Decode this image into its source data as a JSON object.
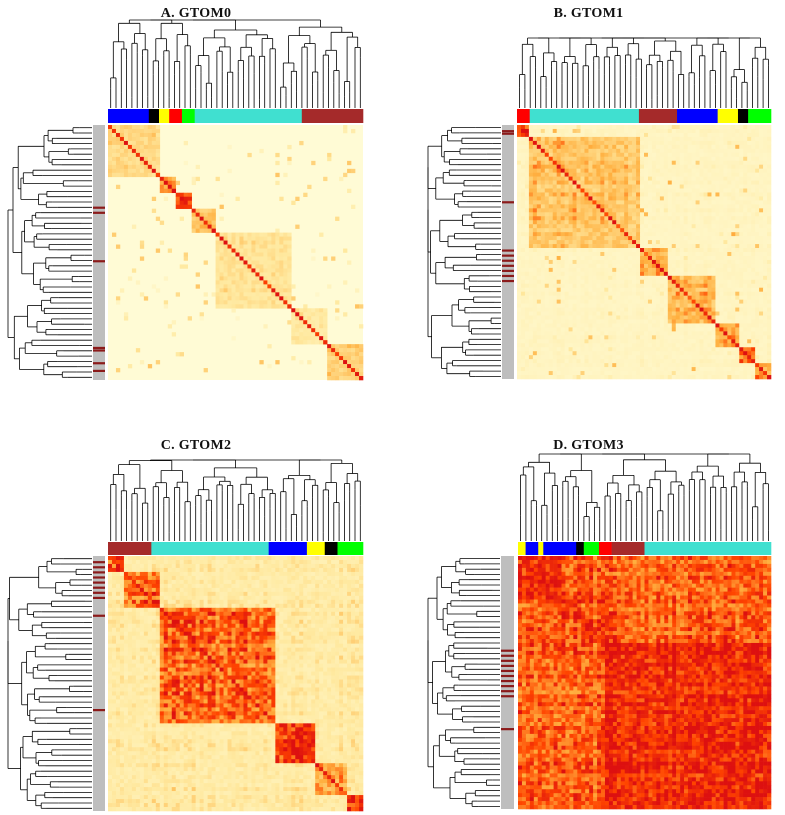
{
  "figure": {
    "panels": [
      {
        "title": "A. GTOM0"
      },
      {
        "title": "B. GTOM1"
      },
      {
        "title": "C. GTOM2"
      },
      {
        "title": "D. GTOM3"
      }
    ]
  },
  "chart_data": [
    {
      "type": "heatmap",
      "title": "A. GTOM0",
      "xlabel": "",
      "ylabel": "",
      "colormap": [
        "#fffbd5",
        "#ffe9a0",
        "#ffb040",
        "#ff4400",
        "#dd1010"
      ],
      "background_level": 0.02,
      "noise": 0.35,
      "color_bar_top": [
        {
          "color": "#0000ff",
          "fraction": 0.16
        },
        {
          "color": "#000000",
          "fraction": 0.04
        },
        {
          "color": "#ffff00",
          "fraction": 0.04
        },
        {
          "color": "#ff0000",
          "fraction": 0.05
        },
        {
          "color": "#00ff00",
          "fraction": 0.05
        },
        {
          "color": "#40e0d0",
          "fraction": 0.42
        },
        {
          "color": "#a52a2a",
          "fraction": 0.24
        }
      ],
      "color_bar_left_base": "#bebebe",
      "color_bar_left_marks": [
        0.32,
        0.34,
        0.53,
        0.87,
        0.88,
        0.93,
        0.96
      ],
      "modules": [
        {
          "start": 0.0,
          "end": 0.2,
          "level": 0.35
        },
        {
          "start": 0.2,
          "end": 0.26,
          "level": 0.55
        },
        {
          "start": 0.26,
          "end": 0.33,
          "level": 0.85
        },
        {
          "start": 0.33,
          "end": 0.42,
          "level": 0.45
        },
        {
          "start": 0.42,
          "end": 0.72,
          "level": 0.3
        },
        {
          "start": 0.72,
          "end": 0.86,
          "level": 0.25
        },
        {
          "start": 0.86,
          "end": 1.0,
          "level": 0.4
        }
      ]
    },
    {
      "type": "heatmap",
      "title": "B. GTOM1",
      "xlabel": "",
      "ylabel": "",
      "colormap": [
        "#fffbd5",
        "#ffe9a0",
        "#ffb040",
        "#ff4400",
        "#dd1010"
      ],
      "background_level": 0.1,
      "noise": 0.45,
      "color_bar_top": [
        {
          "color": "#ff0000",
          "fraction": 0.05
        },
        {
          "color": "#40e0d0",
          "fraction": 0.43
        },
        {
          "color": "#a52a2a",
          "fraction": 0.15
        },
        {
          "color": "#0000ff",
          "fraction": 0.16
        },
        {
          "color": "#ffff00",
          "fraction": 0.08
        },
        {
          "color": "#000000",
          "fraction": 0.04
        },
        {
          "color": "#00ff00",
          "fraction": 0.09
        }
      ],
      "color_bar_left_base": "#bebebe",
      "color_bar_left_marks": [
        0.02,
        0.03,
        0.3,
        0.49,
        0.51,
        0.53,
        0.55,
        0.57,
        0.59,
        0.61
      ],
      "modules": [
        {
          "start": 0.0,
          "end": 0.05,
          "level": 0.9
        },
        {
          "start": 0.05,
          "end": 0.48,
          "level": 0.45
        },
        {
          "start": 0.48,
          "end": 0.6,
          "level": 0.55
        },
        {
          "start": 0.6,
          "end": 0.78,
          "level": 0.5
        },
        {
          "start": 0.78,
          "end": 0.88,
          "level": 0.55
        },
        {
          "start": 0.88,
          "end": 0.93,
          "level": 0.7
        },
        {
          "start": 0.93,
          "end": 1.0,
          "level": 0.6
        }
      ]
    },
    {
      "type": "heatmap",
      "title": "C. GTOM2",
      "xlabel": "",
      "ylabel": "",
      "colormap": [
        "#fffbd5",
        "#ffe9a0",
        "#ffb040",
        "#ff4400",
        "#dd1010"
      ],
      "background_level": 0.25,
      "noise": 0.55,
      "color_bar_top": [
        {
          "color": "#a52a2a",
          "fraction": 0.17
        },
        {
          "color": "#40e0d0",
          "fraction": 0.46
        },
        {
          "color": "#0000ff",
          "fraction": 0.15
        },
        {
          "color": "#ffff00",
          "fraction": 0.07
        },
        {
          "color": "#000000",
          "fraction": 0.05
        },
        {
          "color": "#00ff00",
          "fraction": 0.1
        }
      ],
      "color_bar_left_base": "#bebebe",
      "color_bar_left_marks": [
        0.02,
        0.04,
        0.06,
        0.08,
        0.1,
        0.12,
        0.14,
        0.16,
        0.23,
        0.6
      ],
      "modules": [
        {
          "start": 0.0,
          "end": 0.07,
          "level": 0.8
        },
        {
          "start": 0.07,
          "end": 0.2,
          "level": 0.75
        },
        {
          "start": 0.2,
          "end": 0.65,
          "level": 0.78
        },
        {
          "start": 0.65,
          "end": 0.82,
          "level": 0.95
        },
        {
          "start": 0.82,
          "end": 0.94,
          "level": 0.6
        },
        {
          "start": 0.94,
          "end": 1.0,
          "level": 0.85
        }
      ]
    },
    {
      "type": "heatmap",
      "title": "D. GTOM3",
      "xlabel": "",
      "ylabel": "",
      "colormap": [
        "#fffbd5",
        "#ffe9a0",
        "#ffb040",
        "#ff4400",
        "#dd1010"
      ],
      "background_level": 0.75,
      "noise": 0.45,
      "color_bar_top": [
        {
          "color": "#ffff00",
          "fraction": 0.03
        },
        {
          "color": "#0000ff",
          "fraction": 0.05
        },
        {
          "color": "#ffff00",
          "fraction": 0.02
        },
        {
          "color": "#0000ff",
          "fraction": 0.13
        },
        {
          "color": "#000000",
          "fraction": 0.03
        },
        {
          "color": "#00ff00",
          "fraction": 0.06
        },
        {
          "color": "#ff0000",
          "fraction": 0.05
        },
        {
          "color": "#a52a2a",
          "fraction": 0.13
        },
        {
          "color": "#40e0d0",
          "fraction": 0.5
        }
      ],
      "color_bar_left_base": "#bebebe",
      "color_bar_left_marks": [
        0.37,
        0.39,
        0.41,
        0.43,
        0.45,
        0.47,
        0.49,
        0.51,
        0.53,
        0.55,
        0.68
      ],
      "modules": [
        {
          "start": 0.0,
          "end": 0.17,
          "level": 0.95
        },
        {
          "start": 0.17,
          "end": 0.25,
          "level": 0.9
        },
        {
          "start": 0.25,
          "end": 0.34,
          "level": 0.92
        },
        {
          "start": 0.34,
          "end": 1.0,
          "level": 0.97
        }
      ]
    }
  ]
}
